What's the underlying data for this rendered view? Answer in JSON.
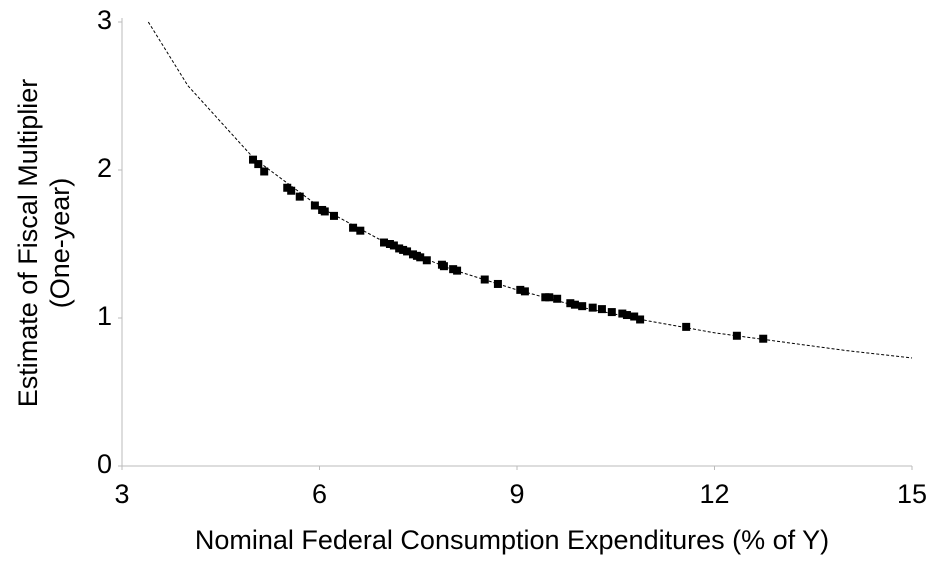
{
  "chart_data": {
    "type": "scatter",
    "xlabel": "Nominal Federal Consumption Expenditures (% of Y)",
    "ylabel": [
      "Estimate of Fiscal Multiplier",
      "(One-year)"
    ],
    "xlim": [
      3,
      15
    ],
    "xticks": [
      3,
      6,
      9,
      12,
      15
    ],
    "ylim": [
      0,
      3
    ],
    "yticks": [
      0,
      1,
      2,
      3
    ],
    "grid": false,
    "series": [
      {
        "type": "scatter",
        "color": "#000000",
        "x": [
          4.99,
          5.07,
          5.16,
          5.51,
          5.57,
          5.7,
          5.93,
          6.04,
          6.08,
          6.22,
          6.51,
          6.62,
          6.98,
          7.07,
          7.13,
          7.21,
          7.27,
          7.33,
          7.42,
          7.48,
          7.53,
          7.63,
          7.86,
          7.89,
          8.03,
          8.09,
          8.51,
          8.71,
          9.05,
          9.12,
          9.43,
          9.49,
          9.61,
          9.81,
          9.88,
          9.99,
          10.15,
          10.29,
          10.44,
          10.6,
          10.67,
          10.78,
          10.87,
          11.57,
          12.34,
          12.74
        ],
        "values": [
          2.07,
          2.04,
          1.99,
          1.88,
          1.86,
          1.82,
          1.76,
          1.73,
          1.72,
          1.69,
          1.61,
          1.59,
          1.51,
          1.5,
          1.49,
          1.47,
          1.46,
          1.45,
          1.43,
          1.42,
          1.41,
          1.39,
          1.36,
          1.35,
          1.33,
          1.32,
          1.26,
          1.23,
          1.19,
          1.18,
          1.14,
          1.14,
          1.13,
          1.1,
          1.09,
          1.08,
          1.07,
          1.06,
          1.04,
          1.03,
          1.02,
          1.01,
          0.99,
          0.94,
          0.88,
          0.86
        ]
      },
      {
        "type": "line",
        "color": "#000000",
        "dashed": true,
        "x": [
          3.4,
          4,
          5,
          6,
          7,
          8,
          9,
          10,
          11,
          12,
          13,
          14,
          15
        ],
        "values": [
          3.0,
          2.57,
          2.08,
          1.75,
          1.51,
          1.33,
          1.19,
          1.07,
          0.98,
          0.9,
          0.84,
          0.78,
          0.73
        ]
      }
    ]
  }
}
